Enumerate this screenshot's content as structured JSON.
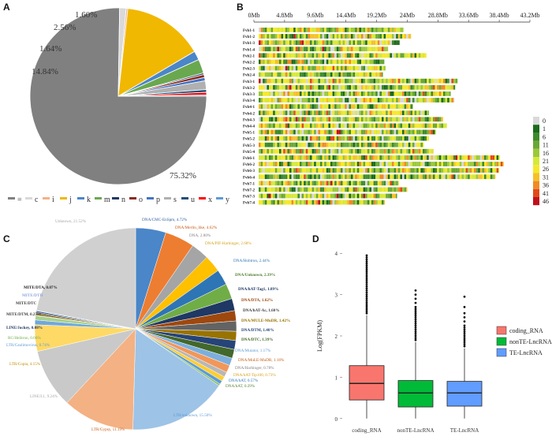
{
  "panel_labels": {
    "a": "A",
    "b": "B",
    "c": "C",
    "d": "D"
  },
  "chart_data": [
    {
      "type": "pie",
      "panel": "A",
      "title": "",
      "slices": [
        {
          "key": "=",
          "value": 75.32,
          "label": "75.32%",
          "color": "#808080"
        },
        {
          "key": "c",
          "value": 1.2,
          "label": "",
          "color": "#d9d9d9"
        },
        {
          "key": "i",
          "value": 0.3,
          "label": "",
          "color": "#f4b183"
        },
        {
          "key": "j",
          "value": 14.84,
          "label": "14.84%",
          "color": "#f0b800"
        },
        {
          "key": "k",
          "value": 1.64,
          "label": "1.64%",
          "color": "#4a86c8"
        },
        {
          "key": "m",
          "value": 2.56,
          "label": "2.56%",
          "color": "#6aa84f"
        },
        {
          "key": "n",
          "value": 0.3,
          "label": "",
          "color": "#203864"
        },
        {
          "key": "o",
          "value": 0.55,
          "label": "",
          "color": "#8b2a1a"
        },
        {
          "key": "p",
          "value": 0.6,
          "label": "",
          "color": "#4472c4"
        },
        {
          "key": "s",
          "value": 1.6,
          "label": "1.60%",
          "color": "#b0b0b0"
        },
        {
          "key": "u",
          "value": 0.5,
          "label": "",
          "color": "#1f4e79"
        },
        {
          "key": "x",
          "value": 0.5,
          "label": "",
          "color": "#ff0000"
        },
        {
          "key": "y",
          "value": 0.2,
          "label": "",
          "color": "#5b9bd5"
        }
      ],
      "legend": [
        "=",
        "c",
        "i",
        "j",
        "k",
        "m",
        "n",
        "o",
        "p",
        "s",
        "u",
        "x",
        "y"
      ],
      "legend_position": "bottom"
    },
    {
      "type": "heatmap",
      "panel": "B",
      "title": "",
      "x_ticks": [
        "0Mb",
        "4.8Mb",
        "9.6Mb",
        "14.4Mb",
        "19.2Mb",
        "24Mb",
        "28.8Mb",
        "33.6Mb",
        "38.4Mb",
        "43.2Mb"
      ],
      "xlim": [
        0,
        43.2
      ],
      "rows": [
        {
          "name": "Fvb1-1",
          "length": 23.4
        },
        {
          "name": "Fvb1-2",
          "length": 24.6
        },
        {
          "name": "Fvb1-3",
          "length": 22.8
        },
        {
          "name": "Fvb1-4",
          "length": 21.0
        },
        {
          "name": "Fvb2-1",
          "length": 27.0
        },
        {
          "name": "Fvb2-2",
          "length": 20.4
        },
        {
          "name": "Fvb2-3",
          "length": 20.6
        },
        {
          "name": "Fvb2-4",
          "length": 20.2
        },
        {
          "name": "Fvb3-1",
          "length": 31.9
        },
        {
          "name": "Fvb3-2",
          "length": 31.5
        },
        {
          "name": "Fvb3-3",
          "length": 30.8
        },
        {
          "name": "Fvb3-4",
          "length": 31.4
        },
        {
          "name": "Fvb4-1",
          "length": 24.9
        },
        {
          "name": "Fvb4-2",
          "length": 27.4
        },
        {
          "name": "Fvb4-3",
          "length": 29.6
        },
        {
          "name": "Fvb4-4",
          "length": 30.2
        },
        {
          "name": "Fvb5-1",
          "length": 28.5
        },
        {
          "name": "Fvb5-2",
          "length": 27.4
        },
        {
          "name": "Fvb5-3",
          "length": 26.6
        },
        {
          "name": "Fvb5-4",
          "length": 28.1
        },
        {
          "name": "Fvb6-1",
          "length": 38.5
        },
        {
          "name": "Fvb6-2",
          "length": 39.1
        },
        {
          "name": "Fvb6-3",
          "length": 38.4
        },
        {
          "name": "Fvb6-4",
          "length": 37.8
        },
        {
          "name": "Fvb7-1",
          "length": 22.7
        },
        {
          "name": "Fvb7-2",
          "length": 24.0
        },
        {
          "name": "Fvb7-3",
          "length": 22.4
        },
        {
          "name": "Fvb7-4",
          "length": 20.5
        }
      ],
      "scale": [
        {
          "value": "0",
          "color": "#d9d9d9"
        },
        {
          "value": "1",
          "color": "#1a6b1a"
        },
        {
          "value": "6",
          "color": "#3d8b2a"
        },
        {
          "value": "11",
          "color": "#6aa834"
        },
        {
          "value": "16",
          "color": "#9bc83a"
        },
        {
          "value": "21",
          "color": "#d6e83a"
        },
        {
          "value": "26",
          "color": "#f5e82a"
        },
        {
          "value": "31",
          "color": "#f5c02a"
        },
        {
          "value": "36",
          "color": "#f08a24"
        },
        {
          "value": "41",
          "color": "#e04a1a"
        },
        {
          "value": "46",
          "color": "#c0101a"
        }
      ]
    },
    {
      "type": "pie",
      "panel": "C",
      "title": "",
      "slices": [
        {
          "label": "DNA/CMC-EnSpm, 4.72%",
          "value": 4.72,
          "color": "#4a86c8",
          "label_color": "#2e5fa0"
        },
        {
          "label": "DNA/Merlin_like, 4.62%",
          "value": 4.62,
          "color": "#ed7d31",
          "label_color": "#c55a11"
        },
        {
          "label": "DNA, 2.80%",
          "value": 2.8,
          "color": "#a5a5a5",
          "label_color": "#7f7f7f"
        },
        {
          "label": "DNA/PIF-Harbinger, 2.68%",
          "value": 2.68,
          "color": "#ffc000",
          "label_color": "#d4a017"
        },
        {
          "label": "DNA/Hobtron, 2.44%",
          "value": 2.44,
          "color": "#2e75b6",
          "label_color": "#2e75b6"
        },
        {
          "label": "DNA/Unknown, 2.39%",
          "value": 2.39,
          "color": "#70ad47",
          "label_color": "#548235"
        },
        {
          "label": "DNA/hAT-Tag1, 1.89%",
          "value": 1.89,
          "color": "#1f3864",
          "label_color": "#1f3864"
        },
        {
          "label": "DNA/DTA, 1.62%",
          "value": 1.62,
          "color": "#9e480e",
          "label_color": "#9e480e"
        },
        {
          "label": "DNA/hAT-Ac, 1.60%",
          "value": 1.6,
          "color": "#636363",
          "label_color": "#404040"
        },
        {
          "label": "DNA/MULE-MuDR, 1.42%",
          "value": 1.42,
          "color": "#997300",
          "label_color": "#997300"
        },
        {
          "label": "DNA/DTM, 1.40%",
          "value": 1.4,
          "color": "#264478",
          "label_color": "#264478"
        },
        {
          "label": "DNA/DTC, 1.39%",
          "value": 1.39,
          "color": "#43682b",
          "label_color": "#43682b"
        },
        {
          "label": "DNA/Mutator, 1.17%",
          "value": 1.17,
          "color": "#7cafdd",
          "label_color": "#5b9bd5"
        },
        {
          "label": "DNA/MuLE-MuDR, 1.16%",
          "value": 1.16,
          "color": "#f1975a",
          "label_color": "#c55a11"
        },
        {
          "label": "DNA/Harbinger, 0.78%",
          "value": 0.78,
          "color": "#b7b7b7",
          "label_color": "#7f7f7f"
        },
        {
          "label": "DNA/hAT-Tip100, 0.73%",
          "value": 0.73,
          "color": "#ffcd33",
          "label_color": "#d4a017"
        },
        {
          "label": "DNA/hAT, 0.57%",
          "value": 0.57,
          "color": "#5b9bd5",
          "label_color": "#2e75b6"
        },
        {
          "label": "DNA/hAT, 0.29%",
          "value": 0.29,
          "color": "#8cc168",
          "label_color": "#548235"
        },
        {
          "label": "LTR/unknown, 15.50%",
          "value": 15.5,
          "color": "#9dc3e6",
          "label_color": "#5b9bd5"
        },
        {
          "label": "LTR/Gypsy, 11.19%",
          "value": 11.19,
          "color": "#f4b183",
          "label_color": "#c55a11"
        },
        {
          "label": "LINE/L1, 9.24%",
          "value": 9.24,
          "color": "#c9c9c9",
          "label_color": "#a5a5a5"
        },
        {
          "label": "LTR/Copia, 4.15%",
          "value": 4.15,
          "color": "#ffd966",
          "label_color": "#bf9000"
        },
        {
          "label": "LTR/Caulimovirus, 0.74%",
          "value": 0.74,
          "color": "#6fa8dc",
          "label_color": "#5b9bd5"
        },
        {
          "label": "RC/Helitron, 0.66%",
          "value": 0.66,
          "color": "#a9d18e",
          "label_color": "#70ad47"
        },
        {
          "label": "LINE/Jockey, 0.08%",
          "value": 0.08,
          "color": "#203864",
          "label_color": "#203864"
        },
        {
          "label": "MITE/DTM, 0.27%",
          "value": 0.27,
          "color": "#7f6000",
          "label_color": "#404040"
        },
        {
          "label": "MITE/DTC",
          "value": 0.2,
          "color": "#404040",
          "label_color": "#404040"
        },
        {
          "label": "MITE/DTH",
          "value": 0.2,
          "color": "#2f5597",
          "label_color": "#8faadc"
        },
        {
          "label": "MITE/DTA, 0.07%",
          "value": 0.07,
          "color": "#385723",
          "label_color": "#222222"
        },
        {
          "label": "Unknown, 21.52%",
          "value": 21.52,
          "color": "#d0d0d0",
          "label_color": "#a5a5a5"
        }
      ]
    },
    {
      "type": "box",
      "panel": "D",
      "title": "",
      "xlabel": "",
      "ylabel": "Log(FPKM)",
      "ylim": [
        -0.1,
        4.1
      ],
      "y_ticks": [
        "0",
        "1",
        "2",
        "3",
        "4"
      ],
      "legend_position": "right",
      "series": [
        {
          "name": "coding_RNA",
          "color": "#f8766d",
          "q1": 0.45,
          "median": 0.85,
          "q3": 1.28,
          "whisker_low": 0.0,
          "whisker_high": 2.5,
          "outliers": [
            2.55,
            2.6,
            2.65,
            2.7,
            2.75,
            2.8,
            2.85,
            2.9,
            2.95,
            3.0,
            3.05,
            3.1,
            3.15,
            3.2,
            3.25,
            3.3,
            3.35,
            3.4,
            3.45,
            3.5,
            3.55,
            3.6,
            3.65,
            3.7,
            3.75,
            3.8,
            3.85,
            3.9,
            3.95
          ]
        },
        {
          "name": "nonTE-LncRNA",
          "color": "#00ba38",
          "q1": 0.28,
          "median": 0.62,
          "q3": 0.92,
          "whisker_low": 0.0,
          "whisker_high": 1.85,
          "outliers": [
            1.9,
            1.95,
            2.0,
            2.05,
            2.1,
            2.15,
            2.2,
            2.25,
            2.3,
            2.35,
            2.4,
            2.45,
            2.5,
            2.55,
            2.6,
            2.65,
            2.7,
            2.8,
            2.9,
            3.0,
            3.1
          ]
        },
        {
          "name": "TE-LncRNA",
          "color": "#619cff",
          "q1": 0.3,
          "median": 0.62,
          "q3": 0.9,
          "whisker_low": 0.0,
          "whisker_high": 1.7,
          "outliers": [
            1.75,
            1.8,
            1.85,
            1.9,
            1.95,
            2.0,
            2.05,
            2.1,
            2.15,
            2.2,
            2.25,
            2.35,
            2.45,
            2.55,
            2.7,
            2.95
          ]
        }
      ]
    }
  ]
}
